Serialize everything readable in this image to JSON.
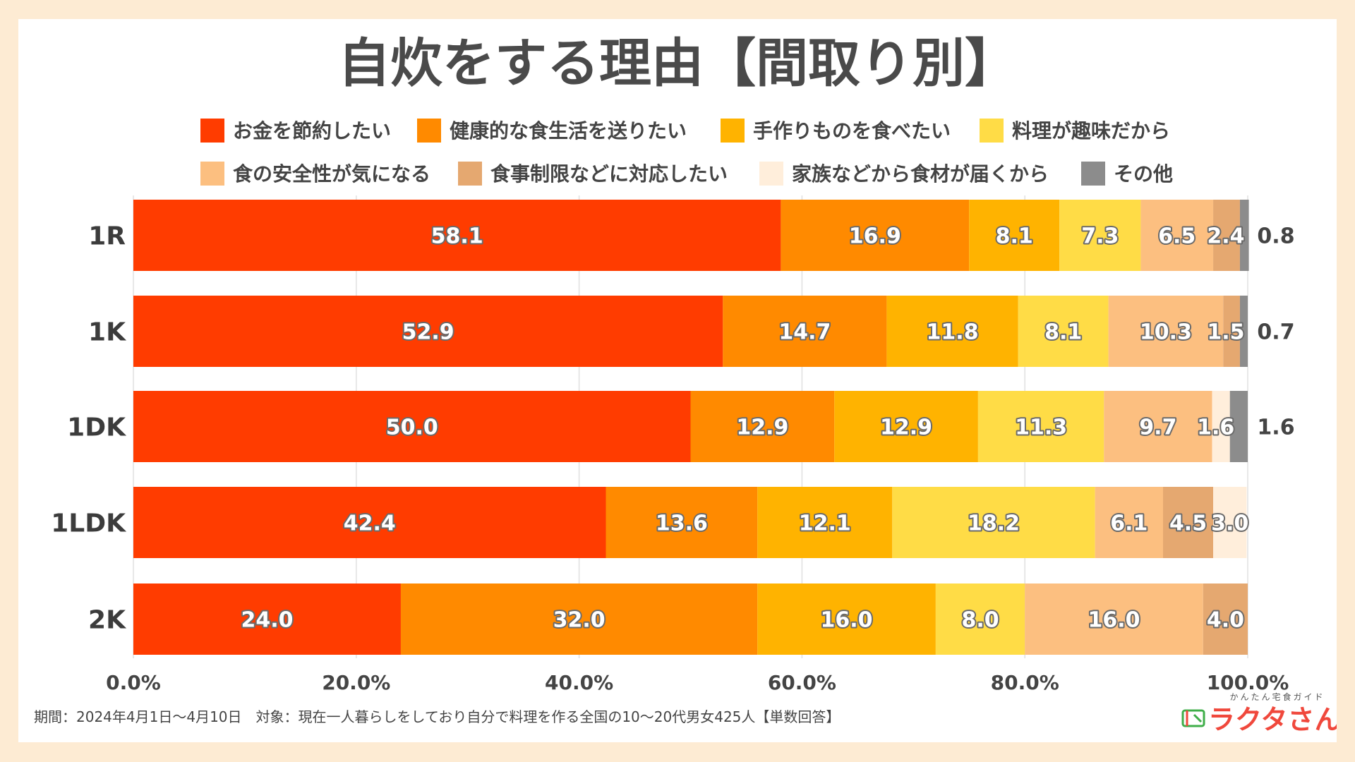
{
  "chart_data": {
    "type": "bar",
    "orientation": "horizontal",
    "stacked": true,
    "title": "自炊をする理由【間取り別】",
    "categories": [
      "1R",
      "1K",
      "1DK",
      "1LDK",
      "2K"
    ],
    "series": [
      {
        "name": "お金を節約したい",
        "color": "#ff3c00",
        "values": [
          58.1,
          52.9,
          50.0,
          42.4,
          24.0
        ]
      },
      {
        "name": "健康的な食生活を送りたい",
        "color": "#ff8a00",
        "values": [
          16.9,
          14.7,
          12.9,
          13.6,
          32.0
        ]
      },
      {
        "name": "手作りものを食べたい",
        "color": "#ffb300",
        "values": [
          8.1,
          11.8,
          12.9,
          12.1,
          16.0
        ]
      },
      {
        "name": "料理が趣味だから",
        "color": "#ffdc46",
        "values": [
          7.3,
          8.1,
          11.3,
          18.2,
          8.0
        ]
      },
      {
        "name": "食の安全性が気になる",
        "color": "#fcbf80",
        "values": [
          6.5,
          10.3,
          9.7,
          6.1,
          16.0
        ]
      },
      {
        "name": "食事制限などに対応したい",
        "color": "#e5a870",
        "values": [
          2.4,
          1.5,
          0.0,
          4.5,
          4.0
        ]
      },
      {
        "name": "家族などから食材が届くから",
        "color": "#ffeedb",
        "values": [
          0.0,
          0.0,
          1.6,
          3.0,
          0.0
        ]
      },
      {
        "name": "その他",
        "color": "#8c8c8c",
        "values": [
          0.8,
          0.7,
          1.6,
          0.0,
          0.0
        ]
      }
    ],
    "data_labels": [
      [
        {
          "series": 0,
          "text": "58.1"
        },
        {
          "series": 1,
          "text": "16.9"
        },
        {
          "series": 2,
          "text": "8.1"
        },
        {
          "series": 3,
          "text": "7.3"
        },
        {
          "series": 4,
          "text": "6.5"
        },
        {
          "series": 5,
          "text": "2.4"
        },
        {
          "series": 7,
          "text": "0.8",
          "outside": true
        }
      ],
      [
        {
          "series": 0,
          "text": "52.9"
        },
        {
          "series": 1,
          "text": "14.7"
        },
        {
          "series": 2,
          "text": "11.8"
        },
        {
          "series": 3,
          "text": "8.1"
        },
        {
          "series": 4,
          "text": "10.3"
        },
        {
          "series": 5,
          "text": "1.5"
        },
        {
          "series": 7,
          "text": "0.7",
          "outside": true
        }
      ],
      [
        {
          "series": 0,
          "text": "50.0"
        },
        {
          "series": 1,
          "text": "12.9"
        },
        {
          "series": 2,
          "text": "12.9"
        },
        {
          "series": 3,
          "text": "11.3"
        },
        {
          "series": 4,
          "text": "9.7"
        },
        {
          "series": 6,
          "text": "1.6"
        },
        {
          "series": 7,
          "text": "1.6",
          "outside": true
        }
      ],
      [
        {
          "series": 0,
          "text": "42.4"
        },
        {
          "series": 1,
          "text": "13.6"
        },
        {
          "series": 2,
          "text": "12.1"
        },
        {
          "series": 3,
          "text": "18.2"
        },
        {
          "series": 4,
          "text": "6.1"
        },
        {
          "series": 5,
          "text": "4.5"
        },
        {
          "series": 6,
          "text": "3.0"
        }
      ],
      [
        {
          "series": 0,
          "text": "24.0"
        },
        {
          "series": 1,
          "text": "32.0"
        },
        {
          "series": 2,
          "text": "16.0"
        },
        {
          "series": 3,
          "text": "8.0"
        },
        {
          "series": 4,
          "text": "16.0"
        },
        {
          "series": 5,
          "text": "4.0"
        }
      ]
    ],
    "x_ticks": [
      "0.0%",
      "20.0%",
      "40.0%",
      "60.0%",
      "80.0%",
      "100.0%"
    ],
    "xlim": [
      0,
      100
    ],
    "grid": true,
    "legend_position": "top"
  },
  "footnote": "期間：2024年4月1日〜4月10日　対象：現在一人暮らしをしており自分で料理を作る全国の10〜20代男女425人【単数回答】",
  "logo": {
    "tagline": "かんたん宅食ガイド",
    "name": "ラクタさん"
  },
  "colors": {
    "background": "#fdebd3",
    "card": "#ffffff",
    "title": "#4a4a4a"
  }
}
